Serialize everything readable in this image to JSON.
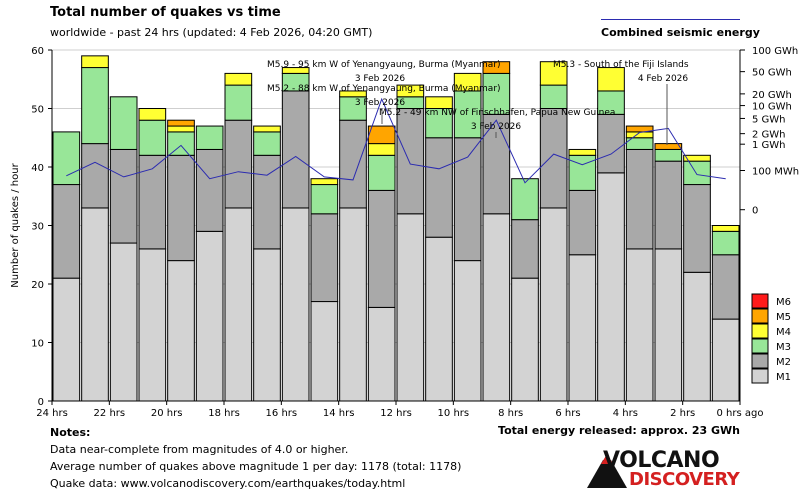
{
  "header": {
    "title": "Total number of quakes vs time",
    "subtitle": "worldwide - past 24 hrs (updated: 4 Feb 2026, 04:20 GMT)",
    "energy_legend": "Combined seismic energy"
  },
  "chart_data": {
    "type": "bar",
    "stacked": true,
    "ylabel": "Number of quakes / hour",
    "ylim": [
      0,
      60
    ],
    "yticks": [
      0,
      10,
      20,
      30,
      40,
      50,
      60
    ],
    "categories": [
      "24 hrs",
      "23 hrs",
      "22 hrs",
      "21 hrs",
      "20 hrs",
      "19 hrs",
      "18 hrs",
      "17 hrs",
      "16 hrs",
      "15 hrs",
      "14 hrs",
      "13 hrs",
      "12 hrs",
      "11 hrs",
      "10 hrs",
      "9 hrs",
      "8 hrs",
      "7 hrs",
      "6 hrs",
      "5 hrs",
      "4 hrs",
      "3 hrs",
      "2 hrs",
      "1 hr"
    ],
    "xticks": [
      {
        "hour": 24,
        "label": "24 hrs"
      },
      {
        "hour": 22,
        "label": "22 hrs"
      },
      {
        "hour": 20,
        "label": "20 hrs"
      },
      {
        "hour": 18,
        "label": "18 hrs"
      },
      {
        "hour": 16,
        "label": "16 hrs"
      },
      {
        "hour": 14,
        "label": "14 hrs"
      },
      {
        "hour": 12,
        "label": "12 hrs"
      },
      {
        "hour": 10,
        "label": "10 hrs"
      },
      {
        "hour": 8,
        "label": "8 hrs"
      },
      {
        "hour": 6,
        "label": "6 hrs"
      },
      {
        "hour": 4,
        "label": "4 hrs"
      },
      {
        "hour": 2,
        "label": "2 hrs"
      },
      {
        "hour": 0,
        "label": "0 hrs ago"
      }
    ],
    "series": [
      {
        "name": "M1",
        "color": "#d3d3d3",
        "values": [
          21,
          33,
          27,
          26,
          24,
          29,
          33,
          26,
          33,
          17,
          33,
          16,
          32,
          28,
          24,
          32,
          21,
          33,
          25,
          39,
          26,
          26,
          22,
          14
        ]
      },
      {
        "name": "M2",
        "color": "#a9a9a9",
        "values": [
          16,
          11,
          16,
          16,
          18,
          14,
          15,
          16,
          20,
          15,
          15,
          20,
          18,
          17,
          21,
          17,
          10,
          17,
          11,
          10,
          17,
          15,
          15,
          11
        ]
      },
      {
        "name": "M3",
        "color": "#98e698",
        "values": [
          9,
          13,
          9,
          6,
          4,
          4,
          6,
          4,
          3,
          5,
          4,
          6,
          2,
          5,
          8,
          7,
          7,
          4,
          6,
          4,
          2,
          2,
          4,
          4
        ]
      },
      {
        "name": "M4",
        "color": "#ffff33",
        "values": [
          0,
          2,
          0,
          2,
          1,
          0,
          2,
          1,
          1,
          1,
          1,
          2,
          2,
          2,
          3,
          0,
          0,
          4,
          1,
          4,
          1,
          0,
          1,
          1
        ]
      },
      {
        "name": "M5",
        "color": "#ffa500",
        "values": [
          0,
          0,
          0,
          0,
          1,
          0,
          0,
          0,
          0,
          0,
          0,
          3,
          0,
          0,
          0,
          2,
          0,
          0,
          0,
          0,
          1,
          1,
          0,
          0
        ]
      },
      {
        "name": "M6",
        "color": "#ff1a1a",
        "values": [
          0,
          0,
          0,
          0,
          0,
          0,
          0,
          0,
          0,
          0,
          0,
          0,
          0,
          0,
          0,
          0,
          0,
          0,
          0,
          0,
          0,
          0,
          0,
          0
        ]
      }
    ],
    "legend_order": [
      "M6",
      "M5",
      "M4",
      "M3",
      "M2",
      "M1"
    ],
    "energy_series": {
      "name": "Combined seismic energy",
      "color": "#2b2bb0",
      "unit_note": "energy-scaled values on right axis (log scale)",
      "values": [
        38.5,
        40.8,
        38.3,
        39.7,
        43.7,
        38.0,
        39.2,
        38.6,
        41.8,
        38.3,
        37.8,
        51.6,
        40.5,
        39.7,
        41.7,
        48.0,
        37.3,
        42.2,
        40.4,
        42.2,
        45.9,
        46.6,
        38.7,
        38.0
      ]
    },
    "right_axis": [
      {
        "label": "100 GWh",
        "level": 60.0
      },
      {
        "label": "50 GWh",
        "level": 56.3
      },
      {
        "label": "20 GWh",
        "level": 52.5
      },
      {
        "label": "10 GWh",
        "level": 50.5
      },
      {
        "label": "5 GWh",
        "level": 48.3
      },
      {
        "label": "2 GWh",
        "level": 45.7
      },
      {
        "label": "1 GWh",
        "level": 43.9
      },
      {
        "label": "100 MWh",
        "level": 39.4
      },
      {
        "label": "0",
        "level": 32.7
      }
    ],
    "annotations": [
      {
        "text": "M5.9 - 95 km W of Yenangyaung, Burma (Myanmar)",
        "anchor_hour": 12
      },
      {
        "text": "3 Feb 2026",
        "anchor_hour": 12
      },
      {
        "text": "M5.2 - 88 km W of Yenangyaung, Burma (Myanmar)",
        "anchor_hour": 12
      },
      {
        "text": "3 Feb 2026",
        "anchor_hour": 12
      },
      {
        "text": "M5.2 - 49 km NW of Finschhafen, Papua New Guinea",
        "anchor_hour": 8
      },
      {
        "text": "3 Feb 2026",
        "anchor_hour": 8
      },
      {
        "text": "M5.3 - South of the Fiji Islands",
        "anchor_hour": 3
      },
      {
        "text": "4 Feb 2026",
        "anchor_hour": 3
      }
    ]
  },
  "notes": {
    "heading": "Notes:",
    "line1": "Data near-complete from magnitudes of 4.0 or higher.",
    "line2": "Average number of quakes above magnitude 1 per day: 1178 (total: 1178)",
    "line3": "Quake data: www.volcanodiscovery.com/earthquakes/today.html"
  },
  "footer": {
    "energy_total": "Total energy released: approx. 23 GWh"
  },
  "logo": {
    "line1": "VOLCANO",
    "line2": "DISCOVERY"
  }
}
